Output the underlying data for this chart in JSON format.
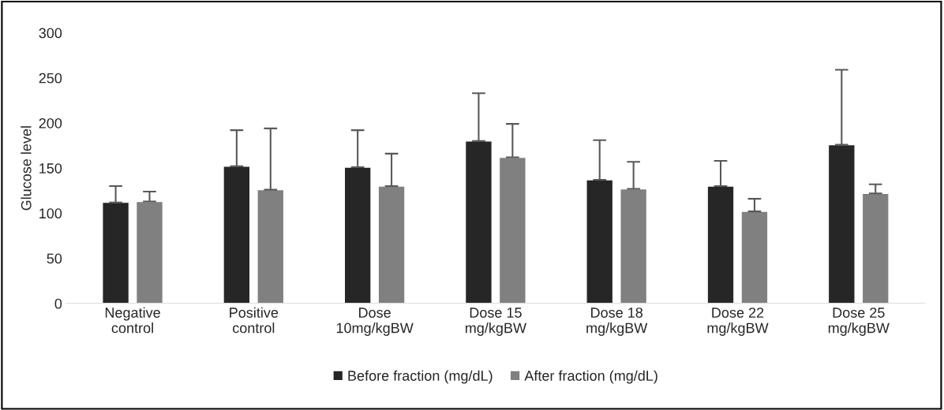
{
  "chart_data": {
    "type": "bar",
    "ylabel": "Glucose level",
    "categories": [
      "Negative\ncontrol",
      "Positive\ncontrol",
      "Dose\n10mg/kgBW",
      "Dose 15\nmg/kgBW",
      "Dose 18\nmg/kgBW",
      "Dose 22\nmg/kgBW",
      "Dose 25\nmg/kgBW"
    ],
    "series": [
      {
        "name": "Before fraction (mg/dL)",
        "color": "#262626",
        "values": [
          112,
          152,
          151,
          180,
          137,
          130,
          176
        ],
        "errors": [
          [
            112,
            130
          ],
          [
            152,
            192
          ],
          [
            151,
            192
          ],
          [
            180,
            233
          ],
          [
            137,
            181
          ],
          [
            130,
            158
          ],
          [
            176,
            259
          ]
        ]
      },
      {
        "name": "After fraction (mg/dL)",
        "color": "#808080",
        "values": [
          113,
          126,
          130,
          162,
          127,
          102,
          122
        ],
        "errors": [
          [
            113,
            124
          ],
          [
            126,
            194
          ],
          [
            130,
            166
          ],
          [
            162,
            199
          ],
          [
            127,
            157
          ],
          [
            102,
            116
          ],
          [
            122,
            132
          ]
        ]
      }
    ],
    "ylim": [
      0,
      300
    ],
    "yticks": [
      0,
      50,
      100,
      150,
      200,
      250,
      300
    ],
    "grid": false,
    "legend": "bottom"
  }
}
